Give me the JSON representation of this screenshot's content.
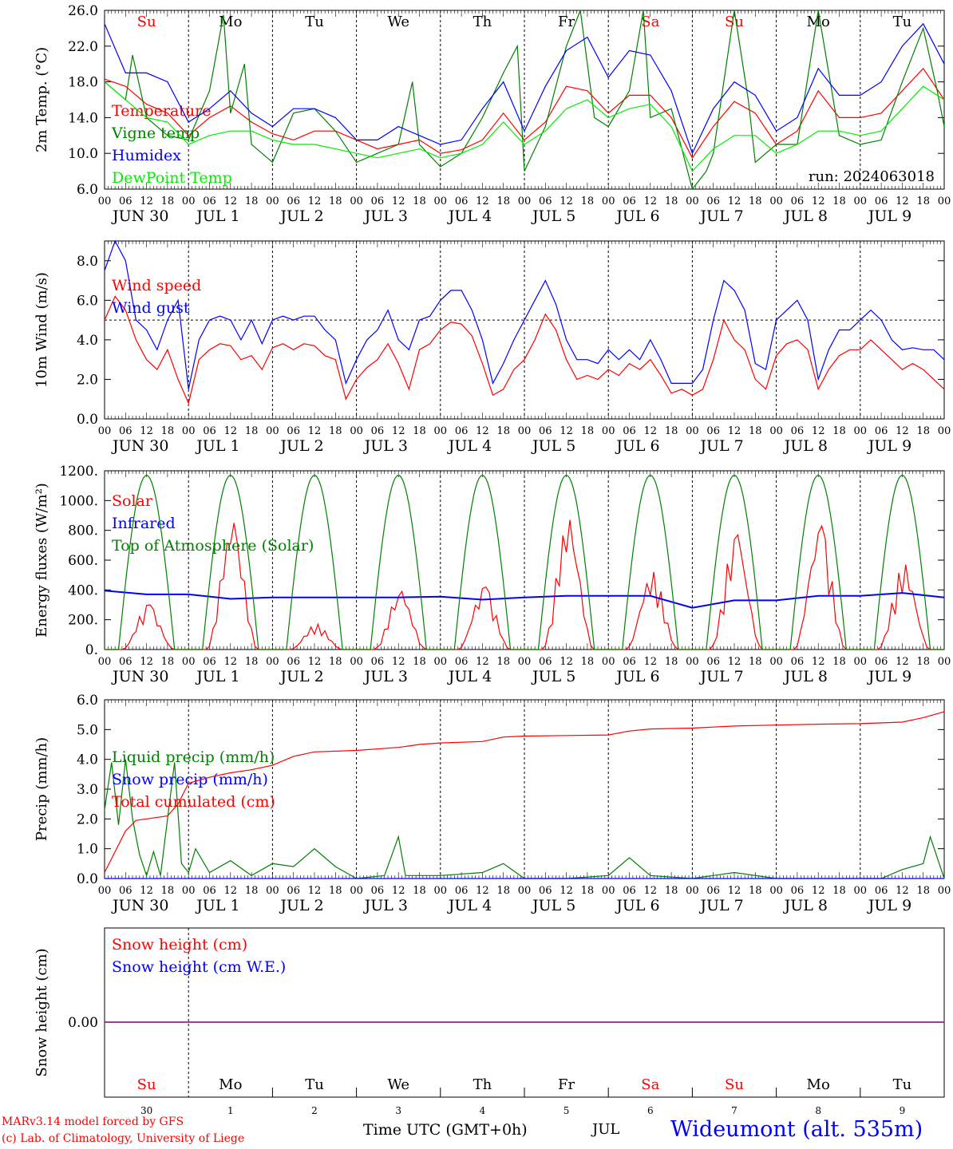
{
  "run_label": "run: 2024063018",
  "days": [
    {
      "abbr": "Su",
      "color": "#ff0000",
      "date": "JUN 30",
      "num": "30"
    },
    {
      "abbr": "Mo",
      "color": "#000000",
      "date": "JUL  1",
      "num": "1"
    },
    {
      "abbr": "Tu",
      "color": "#000000",
      "date": "JUL  2",
      "num": "2"
    },
    {
      "abbr": "We",
      "color": "#000000",
      "date": "JUL  3",
      "num": "3"
    },
    {
      "abbr": "Th",
      "color": "#000000",
      "date": "JUL  4",
      "num": "4"
    },
    {
      "abbr": "Fr",
      "color": "#000000",
      "date": "JUL  5",
      "num": "5"
    },
    {
      "abbr": "Sa",
      "color": "#ff0000",
      "date": "JUL  6",
      "num": "6"
    },
    {
      "abbr": "Su",
      "color": "#ff0000",
      "date": "JUL  7",
      "num": "7"
    },
    {
      "abbr": "Mo",
      "color": "#000000",
      "date": "JUL  8",
      "num": "8"
    },
    {
      "abbr": "Tu",
      "color": "#000000",
      "date": "JUL  9",
      "num": "9"
    }
  ],
  "hour_ticks": [
    "00",
    "06",
    "12",
    "18"
  ],
  "footer": {
    "credit_line1": "MARv3.14 model forced by GFS",
    "credit_line2": "(c) Lab. of Climatology, University of Liege",
    "xlabel": "Time UTC (GMT+0h)",
    "month": "JUL",
    "station": "Wideumont (alt. 535m)"
  },
  "chart_data": [
    {
      "type": "line",
      "ylabel": "2m Temp. (°C)",
      "ylim": [
        6.0,
        26.0
      ],
      "yticks": [
        "6.0",
        "10.0",
        "14.0",
        "18.0",
        "22.0",
        "26.0"
      ],
      "x": "hours since JUN 30 00 UTC, 0-240",
      "series": [
        {
          "name": "Temperature",
          "color": "#ff0000",
          "x": [
            0,
            6,
            12,
            18,
            24,
            30,
            36,
            42,
            48,
            54,
            60,
            66,
            72,
            78,
            84,
            90,
            96,
            102,
            108,
            114,
            120,
            126,
            132,
            138,
            144,
            150,
            156,
            162,
            168,
            174,
            180,
            186,
            192,
            198,
            204,
            210,
            216,
            222,
            228,
            234,
            240
          ],
          "y": [
            18.3,
            17.5,
            15.5,
            14.5,
            12.0,
            14.0,
            15.3,
            13.5,
            12.2,
            11.5,
            12.5,
            12.5,
            11.5,
            10.5,
            11.0,
            11.5,
            10.0,
            10.4,
            11.5,
            14.5,
            11.5,
            13.5,
            17.5,
            17.0,
            14.5,
            16.5,
            16.5,
            14.0,
            9.5,
            13.0,
            15.8,
            14.5,
            11.0,
            12.5,
            17.0,
            14.0,
            14.0,
            14.5,
            17.0,
            19.5,
            16.0
          ]
        },
        {
          "name": "Vigne temp",
          "color": "#008000",
          "x": [
            0,
            6,
            8,
            12,
            18,
            24,
            30,
            34,
            36,
            40,
            42,
            48,
            54,
            60,
            66,
            72,
            78,
            84,
            88,
            90,
            96,
            102,
            108,
            114,
            118,
            120,
            126,
            132,
            136,
            140,
            144,
            150,
            154,
            156,
            162,
            168,
            172,
            174,
            180,
            184,
            186,
            192,
            198,
            204,
            210,
            216,
            222,
            228,
            234,
            238,
            240
          ],
          "y": [
            18.0,
            16.0,
            21.0,
            14.0,
            12.0,
            11.5,
            17.0,
            25.5,
            14.5,
            20.0,
            11.0,
            9.0,
            14.5,
            15.0,
            12.5,
            9.0,
            10.0,
            11.0,
            18.0,
            11.0,
            8.5,
            10.0,
            14.0,
            19.0,
            22.0,
            8.0,
            13.0,
            22.0,
            26.0,
            14.0,
            13.0,
            17.0,
            26.0,
            14.0,
            15.0,
            6.0,
            8.0,
            10.0,
            26.0,
            16.0,
            9.0,
            11.0,
            11.0,
            26.0,
            12.0,
            11.0,
            11.5,
            18.0,
            24.0,
            17.0,
            13.0
          ]
        },
        {
          "name": "Humidex",
          "color": "#0000ff",
          "x": [
            0,
            6,
            12,
            18,
            24,
            30,
            36,
            42,
            48,
            54,
            60,
            66,
            72,
            78,
            84,
            90,
            96,
            102,
            108,
            114,
            120,
            126,
            132,
            138,
            144,
            150,
            156,
            162,
            168,
            174,
            180,
            186,
            192,
            198,
            204,
            210,
            216,
            222,
            228,
            234,
            240
          ],
          "y": [
            24.5,
            19.0,
            19.0,
            18.0,
            13.5,
            15.0,
            17.0,
            14.5,
            13.0,
            15.0,
            15.0,
            14.0,
            11.5,
            11.5,
            13.0,
            12.0,
            11.0,
            11.5,
            15.0,
            18.0,
            12.5,
            17.5,
            21.5,
            23.0,
            18.5,
            21.5,
            21.0,
            17.0,
            10.0,
            15.0,
            18.0,
            16.5,
            12.5,
            14.0,
            19.5,
            16.5,
            16.5,
            18.0,
            22.0,
            24.5,
            20.0
          ]
        },
        {
          "name": "DewPoint Temp",
          "color": "#00ee00",
          "x": [
            0,
            6,
            12,
            18,
            24,
            30,
            36,
            42,
            48,
            54,
            60,
            66,
            72,
            78,
            84,
            90,
            96,
            102,
            108,
            114,
            120,
            126,
            132,
            138,
            144,
            150,
            156,
            162,
            168,
            174,
            180,
            186,
            192,
            198,
            204,
            210,
            216,
            222,
            228,
            234,
            240
          ],
          "y": [
            18.0,
            16.0,
            14.0,
            13.5,
            11.0,
            12.0,
            12.5,
            12.5,
            11.5,
            11.0,
            11.0,
            10.5,
            10.0,
            9.5,
            10.0,
            10.5,
            9.5,
            10.0,
            11.0,
            13.5,
            11.0,
            12.5,
            15.0,
            16.0,
            14.0,
            15.0,
            15.5,
            13.0,
            8.0,
            10.5,
            12.0,
            12.0,
            10.0,
            11.0,
            12.5,
            12.5,
            12.0,
            12.5,
            15.0,
            17.5,
            16.0
          ]
        }
      ]
    },
    {
      "type": "line",
      "ylabel": "10m Wind (m/s)",
      "ylim": [
        0.0,
        9.0
      ],
      "yticks": [
        "0.0",
        "2.0",
        "4.0",
        "6.0",
        "8.0"
      ],
      "reference_line": 5.0,
      "series": [
        {
          "name": "Wind speed",
          "color": "#ff0000",
          "x": [
            0,
            3,
            6,
            9,
            12,
            15,
            18,
            21,
            24,
            27,
            30,
            33,
            36,
            39,
            42,
            45,
            48,
            51,
            54,
            57,
            60,
            63,
            66,
            69,
            72,
            75,
            78,
            81,
            84,
            87,
            90,
            93,
            96,
            99,
            102,
            105,
            108,
            111,
            114,
            117,
            120,
            123,
            126,
            129,
            132,
            135,
            138,
            141,
            144,
            147,
            150,
            153,
            156,
            159,
            162,
            165,
            168,
            171,
            174,
            177,
            180,
            183,
            186,
            189,
            192,
            195,
            198,
            201,
            204,
            207,
            210,
            213,
            216,
            219,
            222,
            225,
            228,
            231,
            234,
            237,
            240
          ],
          "y": [
            5.0,
            6.2,
            5.5,
            4.0,
            3.0,
            2.5,
            3.5,
            2.0,
            0.8,
            3.0,
            3.5,
            3.8,
            3.7,
            3.0,
            3.2,
            2.5,
            3.6,
            3.8,
            3.5,
            3.8,
            3.7,
            3.2,
            3.0,
            1.0,
            2.0,
            2.6,
            3.0,
            3.8,
            2.8,
            1.5,
            3.5,
            3.8,
            4.5,
            4.9,
            4.8,
            4.2,
            2.8,
            1.2,
            1.5,
            2.5,
            3.0,
            4.0,
            5.3,
            4.5,
            3.0,
            2.0,
            2.2,
            2.0,
            2.5,
            2.2,
            2.8,
            2.5,
            3.0,
            2.2,
            1.3,
            1.5,
            1.2,
            1.5,
            3.0,
            5.0,
            4.0,
            3.5,
            2.0,
            1.5,
            3.2,
            3.8,
            4.0,
            3.5,
            1.5,
            2.5,
            3.2,
            3.5,
            3.5,
            4.0,
            3.5,
            3.0,
            2.5,
            2.8,
            2.5,
            2.0,
            1.5
          ]
        },
        {
          "name": "Wind gust",
          "color": "#0000ff",
          "x": [
            0,
            3,
            6,
            9,
            12,
            15,
            18,
            21,
            24,
            27,
            30,
            33,
            36,
            39,
            42,
            45,
            48,
            51,
            54,
            57,
            60,
            63,
            66,
            69,
            72,
            75,
            78,
            81,
            84,
            87,
            90,
            93,
            96,
            99,
            102,
            105,
            108,
            111,
            114,
            117,
            120,
            123,
            126,
            129,
            132,
            135,
            138,
            141,
            144,
            147,
            150,
            153,
            156,
            159,
            162,
            165,
            168,
            171,
            174,
            177,
            180,
            183,
            186,
            189,
            192,
            195,
            198,
            201,
            204,
            207,
            210,
            213,
            216,
            219,
            222,
            225,
            228,
            231,
            234,
            237,
            240
          ],
          "y": [
            7.5,
            9.0,
            8.0,
            5.0,
            4.5,
            3.5,
            5.0,
            6.0,
            1.5,
            4.0,
            5.0,
            5.2,
            5.0,
            4.0,
            5.0,
            3.8,
            5.0,
            5.2,
            5.0,
            5.2,
            5.2,
            4.5,
            4.0,
            1.8,
            3.0,
            4.0,
            4.5,
            5.5,
            4.0,
            3.5,
            5.0,
            5.2,
            6.0,
            6.5,
            6.5,
            5.5,
            4.0,
            1.8,
            2.8,
            4.0,
            5.0,
            6.0,
            7.0,
            5.8,
            4.0,
            3.0,
            3.0,
            2.8,
            3.5,
            3.0,
            3.5,
            3.0,
            4.0,
            3.0,
            1.8,
            1.8,
            1.8,
            2.5,
            5.0,
            7.0,
            6.5,
            5.5,
            2.8,
            2.5,
            5.0,
            5.5,
            6.0,
            5.0,
            2.0,
            3.5,
            4.5,
            4.5,
            5.0,
            5.5,
            5.0,
            4.0,
            3.5,
            3.6,
            3.5,
            3.5,
            3.0
          ]
        }
      ]
    },
    {
      "type": "line",
      "ylabel": "Energy fluxes (W/m²)",
      "ylim": [
        0,
        1200
      ],
      "yticks": [
        "0.",
        "200.",
        "400.",
        "600.",
        "800.",
        "1000.",
        "1200."
      ],
      "series": [
        {
          "name": "Solar",
          "color": "#ff0000",
          "daily_peak": [
            300,
            850,
            170,
            390,
            420,
            870,
            520,
            770,
            830,
            570
          ]
        },
        {
          "name": "Infrared",
          "color": "#0000ff",
          "x": [
            0,
            12,
            24,
            36,
            48,
            60,
            72,
            84,
            96,
            108,
            120,
            132,
            144,
            156,
            168,
            180,
            192,
            204,
            216,
            228,
            240
          ],
          "y": [
            395,
            370,
            370,
            340,
            350,
            350,
            350,
            350,
            355,
            335,
            350,
            360,
            360,
            360,
            280,
            330,
            330,
            360,
            360,
            380,
            350
          ]
        },
        {
          "name": "Top of Atmosphere (Solar)",
          "color": "#008000",
          "daily_peak": 1170,
          "sunrise_hour": 4,
          "sunset_hour": 20
        }
      ]
    },
    {
      "type": "line",
      "ylabel": "Precip (mm/h)",
      "ylim": [
        0.0,
        6.0
      ],
      "yticks": [
        "0.0",
        "1.0",
        "2.0",
        "3.0",
        "4.0",
        "5.0",
        "6.0"
      ],
      "series": [
        {
          "name": "Liquid precip (mm/h)",
          "color": "#008000",
          "x": [
            0,
            2,
            4,
            6,
            8,
            10,
            12,
            14,
            16,
            18,
            20,
            22,
            24,
            26,
            30,
            36,
            42,
            48,
            54,
            60,
            66,
            72,
            80,
            84,
            86,
            90,
            96,
            108,
            114,
            120,
            132,
            144,
            150,
            156,
            168,
            180,
            192,
            204,
            216,
            222,
            228,
            234,
            236,
            240
          ],
          "y": [
            2.3,
            3.9,
            1.8,
            4.0,
            2.0,
            0.8,
            0.1,
            0.9,
            0.1,
            2.0,
            3.9,
            0.5,
            0.2,
            1.0,
            0.2,
            0.6,
            0.1,
            0.5,
            0.4,
            1.0,
            0.4,
            0.0,
            0.1,
            1.4,
            0.1,
            0.1,
            0.1,
            0.2,
            0.5,
            0.0,
            0.0,
            0.1,
            0.7,
            0.1,
            0.0,
            0.2,
            0.0,
            0.0,
            0.0,
            0.0,
            0.3,
            0.5,
            1.4,
            0.0
          ]
        },
        {
          "name": "Snow precip (mm/h)",
          "color": "#0000ff",
          "x": [
            0,
            240
          ],
          "y": [
            0,
            0
          ]
        },
        {
          "name": "Total cumulated (cm)",
          "color": "#ff0000",
          "x": [
            0,
            3,
            6,
            9,
            12,
            18,
            21,
            24,
            30,
            36,
            42,
            48,
            54,
            60,
            72,
            84,
            90,
            96,
            108,
            114,
            120,
            132,
            144,
            150,
            156,
            168,
            180,
            192,
            204,
            216,
            228,
            234,
            240
          ],
          "y": [
            0.2,
            0.9,
            1.6,
            1.95,
            2.0,
            2.1,
            2.5,
            3.2,
            3.4,
            3.55,
            3.65,
            3.8,
            4.1,
            4.25,
            4.3,
            4.4,
            4.5,
            4.55,
            4.6,
            4.75,
            4.78,
            4.8,
            4.82,
            4.95,
            5.02,
            5.05,
            5.12,
            5.15,
            5.18,
            5.2,
            5.25,
            5.4,
            5.6
          ]
        }
      ]
    },
    {
      "type": "line",
      "ylabel": "Snow height (cm)",
      "yticks": [
        "0.00"
      ],
      "series": [
        {
          "name": "Snow height (cm)",
          "color": "#ff0000",
          "x": [
            0,
            240
          ],
          "y": [
            0,
            0
          ]
        },
        {
          "name": "Snow height (cm W.E.)",
          "color": "#0000ff",
          "x": [
            0,
            240
          ],
          "y": [
            0,
            0
          ]
        }
      ]
    }
  ]
}
